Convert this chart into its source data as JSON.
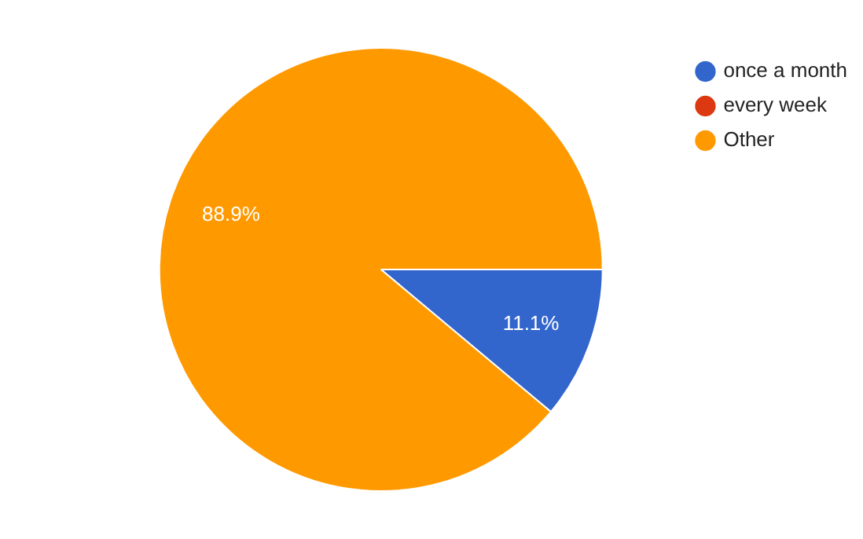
{
  "chart_data": {
    "type": "pie",
    "categories": [
      "once a month",
      "every week",
      "Other"
    ],
    "values": [
      11.1,
      0,
      88.9
    ],
    "colors": [
      "#3366cc",
      "#dc3912",
      "#ff9900"
    ],
    "value_labels": [
      "11.1%",
      null,
      "88.9%"
    ],
    "legend": "top right"
  }
}
